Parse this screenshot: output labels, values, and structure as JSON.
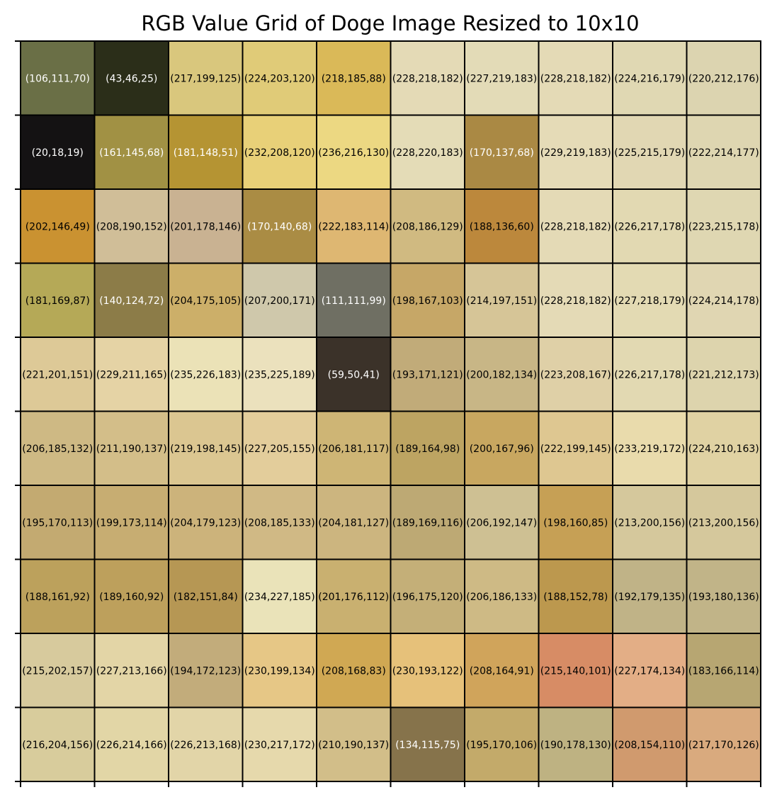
{
  "chart_data": {
    "type": "heatmap",
    "title": "RGB Value Grid of Doge Image Resized to 10x10",
    "xlabel": "",
    "ylabel": "",
    "rows": 10,
    "cols": 10,
    "grid": true,
    "legend": "none",
    "colors": {
      "grid_line": "#000000",
      "dark_text": "#000000",
      "light_text": "#ffffff"
    },
    "values": [
      [
        [
          106,
          111,
          70
        ],
        [
          43,
          46,
          25
        ],
        [
          217,
          199,
          125
        ],
        [
          224,
          203,
          120
        ],
        [
          218,
          185,
          88
        ],
        [
          228,
          218,
          182
        ],
        [
          227,
          219,
          183
        ],
        [
          228,
          218,
          182
        ],
        [
          224,
          216,
          179
        ],
        [
          220,
          212,
          176
        ]
      ],
      [
        [
          20,
          18,
          19
        ],
        [
          161,
          145,
          68
        ],
        [
          181,
          148,
          51
        ],
        [
          232,
          208,
          120
        ],
        [
          236,
          216,
          130
        ],
        [
          228,
          220,
          183
        ],
        [
          170,
          137,
          68
        ],
        [
          229,
          219,
          183
        ],
        [
          225,
          215,
          179
        ],
        [
          222,
          214,
          177
        ]
      ],
      [
        [
          202,
          146,
          49
        ],
        [
          208,
          190,
          152
        ],
        [
          201,
          178,
          146
        ],
        [
          170,
          140,
          68
        ],
        [
          222,
          183,
          114
        ],
        [
          208,
          186,
          129
        ],
        [
          188,
          136,
          60
        ],
        [
          228,
          218,
          182
        ],
        [
          226,
          217,
          178
        ],
        [
          223,
          215,
          178
        ]
      ],
      [
        [
          181,
          169,
          87
        ],
        [
          140,
          124,
          72
        ],
        [
          204,
          175,
          105
        ],
        [
          207,
          200,
          171
        ],
        [
          111,
          111,
          99
        ],
        [
          198,
          167,
          103
        ],
        [
          214,
          197,
          151
        ],
        [
          228,
          218,
          182
        ],
        [
          227,
          218,
          179
        ],
        [
          224,
          214,
          178
        ]
      ],
      [
        [
          221,
          201,
          151
        ],
        [
          229,
          211,
          165
        ],
        [
          235,
          226,
          183
        ],
        [
          235,
          225,
          189
        ],
        [
          59,
          50,
          41
        ],
        [
          193,
          171,
          121
        ],
        [
          200,
          182,
          134
        ],
        [
          223,
          208,
          167
        ],
        [
          226,
          217,
          178
        ],
        [
          221,
          212,
          173
        ]
      ],
      [
        [
          206,
          185,
          132
        ],
        [
          211,
          190,
          137
        ],
        [
          219,
          198,
          145
        ],
        [
          227,
          205,
          155
        ],
        [
          206,
          181,
          117
        ],
        [
          189,
          164,
          98
        ],
        [
          200,
          167,
          96
        ],
        [
          222,
          199,
          145
        ],
        [
          233,
          219,
          172
        ],
        [
          224,
          210,
          163
        ]
      ],
      [
        [
          195,
          170,
          113
        ],
        [
          199,
          173,
          114
        ],
        [
          204,
          179,
          123
        ],
        [
          208,
          185,
          133
        ],
        [
          204,
          181,
          127
        ],
        [
          189,
          169,
          116
        ],
        [
          206,
          192,
          147
        ],
        [
          198,
          160,
          85
        ],
        [
          213,
          200,
          156
        ],
        [
          213,
          200,
          156
        ]
      ],
      [
        [
          188,
          161,
          92
        ],
        [
          189,
          160,
          92
        ],
        [
          182,
          151,
          84
        ],
        [
          234,
          227,
          185
        ],
        [
          201,
          176,
          112
        ],
        [
          196,
          175,
          120
        ],
        [
          206,
          186,
          133
        ],
        [
          188,
          152,
          78
        ],
        [
          192,
          179,
          135
        ],
        [
          193,
          180,
          136
        ]
      ],
      [
        [
          215,
          202,
          157
        ],
        [
          227,
          213,
          166
        ],
        [
          194,
          172,
          123
        ],
        [
          230,
          199,
          134
        ],
        [
          208,
          168,
          83
        ],
        [
          230,
          193,
          122
        ],
        [
          208,
          164,
          91
        ],
        [
          215,
          140,
          101
        ],
        [
          227,
          174,
          134
        ],
        [
          183,
          166,
          114
        ]
      ],
      [
        [
          216,
          204,
          156
        ],
        [
          226,
          214,
          166
        ],
        [
          226,
          213,
          168
        ],
        [
          230,
          217,
          172
        ],
        [
          210,
          190,
          137
        ],
        [
          134,
          115,
          75
        ],
        [
          195,
          170,
          106
        ],
        [
          190,
          178,
          130
        ],
        [
          208,
          154,
          110
        ],
        [
          217,
          170,
          126
        ]
      ]
    ]
  }
}
